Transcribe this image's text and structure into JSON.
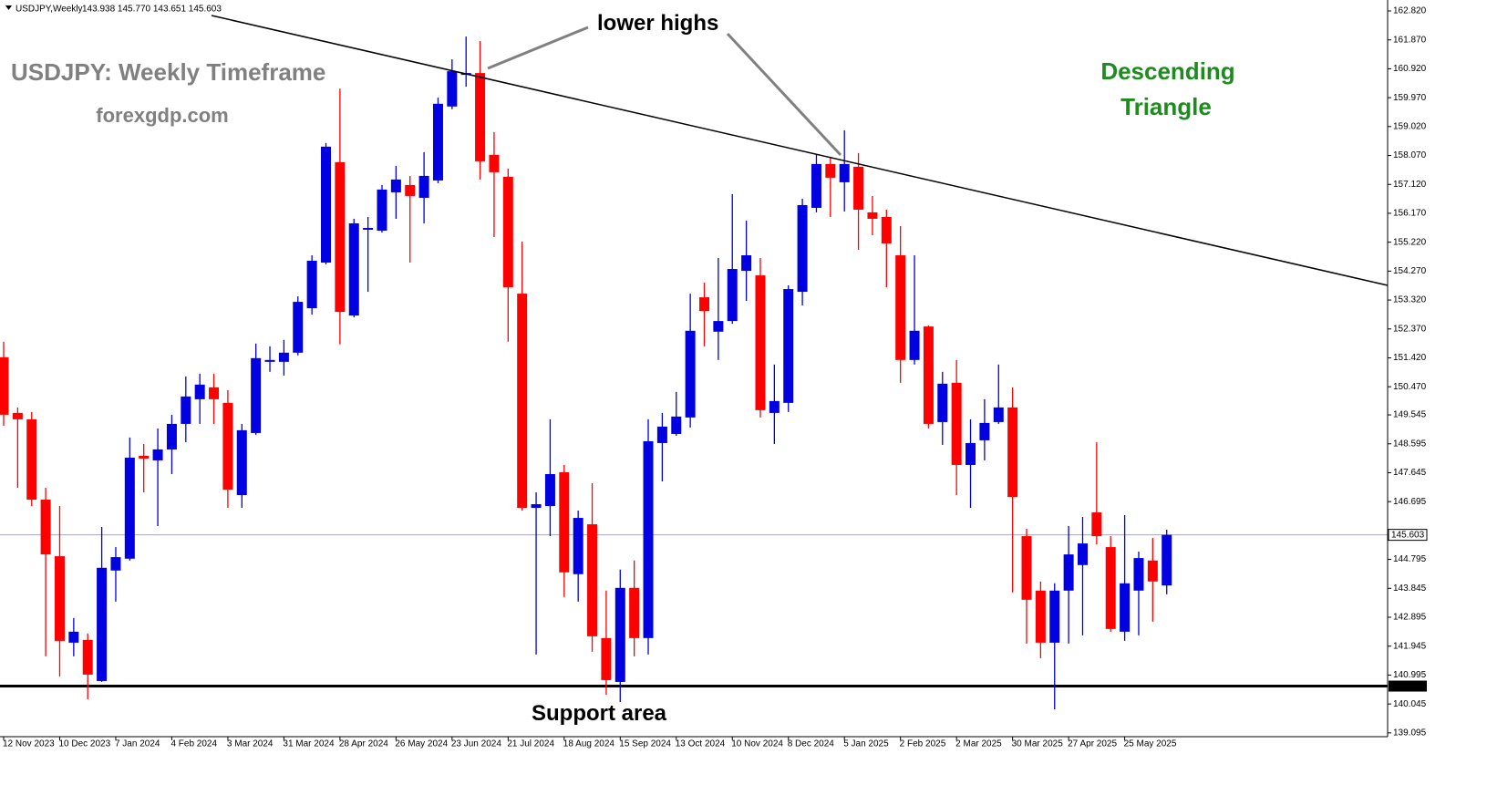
{
  "header": {
    "symbol": "USDJPY,Weekly",
    "info": "143.938 145.770 143.651 145.603"
  },
  "annotations": {
    "title": "USDJPY: Weekly Timeframe",
    "site": "forexgdp.com",
    "pattern": [
      "Descending",
      "Triangle"
    ],
    "lower_highs": "lower highs",
    "support": "Support area"
  },
  "chart_data": {
    "type": "candlestick",
    "categories": [
      "12 Nov 2023",
      null,
      null,
      null,
      "10 Dec 2023",
      null,
      null,
      null,
      "7 Jan 2024",
      null,
      null,
      null,
      "4 Feb 2024",
      null,
      null,
      null,
      "3 Mar 2024",
      null,
      null,
      null,
      "31 Mar 2024",
      null,
      null,
      null,
      "28 Apr 2024",
      null,
      null,
      null,
      "26 May 2024",
      null,
      null,
      null,
      "23 Jun 2024",
      null,
      null,
      null,
      "21 Jul 2024",
      null,
      null,
      null,
      "18 Aug 2024",
      null,
      null,
      null,
      "15 Sep 2024",
      null,
      null,
      null,
      "13 Oct 2024",
      null,
      null,
      null,
      "10 Nov 2024",
      null,
      null,
      null,
      "8 Dec 2024",
      null,
      null,
      null,
      "5 Jan 2025",
      null,
      null,
      null,
      "2 Feb 2025",
      null,
      null,
      null,
      "2 Mar 2025",
      null,
      null,
      null,
      "30 Mar 2025",
      null,
      null,
      null,
      "27 Apr 2025",
      null,
      null,
      null,
      "25 May 2025",
      null,
      null,
      null
    ],
    "open": [
      151.44,
      149.61,
      149.4,
      146.76,
      144.9,
      142.06,
      142.15,
      140.8,
      144.43,
      144.82,
      148.2,
      148.05,
      148.41,
      149.25,
      150.06,
      150.45,
      149.94,
      146.91,
      148.95,
      151.29,
      151.29,
      151.59,
      153.05,
      154.55,
      157.85,
      152.81,
      155.63,
      155.6,
      156.86,
      157.1,
      156.68,
      157.25,
      159.68,
      160.72,
      160.78,
      158.09,
      157.37,
      153.53,
      146.49,
      146.55,
      147.66,
      144.31,
      145.95,
      142.21,
      140.77,
      143.86,
      142.21,
      148.62,
      148.92,
      149.46,
      153.41,
      152.28,
      152.63,
      154.28,
      154.13,
      149.61,
      149.94,
      153.59,
      156.35,
      157.79,
      157.19,
      157.7,
      156.2,
      156.05,
      154.79,
      151.35,
      152.45,
      149.31,
      150.6,
      147.9,
      148.71,
      149.31,
      149.79,
      145.56,
      143.77,
      142.06,
      143.77,
      144.61,
      146.34,
      145.2,
      142.42,
      143.77,
      144.76,
      143.938
    ],
    "high": [
      151.95,
      149.79,
      149.64,
      147.15,
      146.55,
      142.87,
      142.36,
      145.86,
      145.2,
      148.8,
      148.59,
      149.1,
      149.55,
      150.81,
      150.9,
      150.9,
      150.36,
      149.25,
      151.89,
      151.8,
      152.01,
      153.44,
      154.79,
      158.48,
      160.27,
      155.99,
      156.05,
      157.1,
      157.73,
      157.4,
      158.18,
      159.97,
      161.23,
      161.98,
      161.83,
      158.84,
      157.64,
      155.24,
      147.0,
      149.4,
      147.9,
      146.4,
      147.3,
      143.77,
      144.46,
      144.76,
      149.4,
      149.61,
      150.3,
      153.53,
      153.89,
      154.7,
      156.8,
      155.93,
      154.7,
      151.2,
      153.8,
      156.65,
      158.09,
      158.03,
      158.9,
      158.15,
      156.74,
      156.29,
      155.75,
      154.79,
      152.48,
      150.96,
      151.35,
      149.4,
      150.06,
      151.2,
      150.45,
      145.8,
      144.07,
      144.01,
      145.89,
      146.19,
      148.65,
      145.56,
      146.25,
      145.05,
      145.5,
      145.77
    ],
    "low": [
      149.19,
      147.15,
      146.55,
      141.61,
      140.95,
      141.61,
      140.2,
      140.77,
      143.41,
      144.76,
      147.0,
      145.89,
      147.6,
      148.65,
      149.25,
      149.25,
      146.49,
      146.49,
      148.89,
      150.96,
      150.84,
      151.5,
      152.84,
      154.49,
      151.86,
      152.75,
      153.59,
      155.54,
      155.99,
      154.55,
      155.84,
      157.16,
      159.59,
      160.33,
      157.28,
      155.39,
      151.95,
      146.4,
      141.67,
      145.56,
      143.56,
      143.41,
      141.76,
      140.35,
      140.11,
      141.61,
      141.67,
      147.36,
      148.86,
      149.13,
      151.8,
      151.35,
      152.54,
      153.29,
      149.46,
      148.59,
      149.64,
      153.14,
      156.2,
      156.05,
      156.23,
      154.97,
      155.45,
      153.74,
      150.6,
      151.2,
      149.1,
      148.56,
      146.91,
      146.49,
      148.05,
      149.25,
      143.71,
      142.03,
      141.55,
      139.87,
      142.03,
      142.3,
      145.29,
      142.42,
      142.12,
      142.3,
      142.75,
      143.651
    ],
    "close": [
      149.55,
      149.4,
      146.76,
      144.96,
      142.12,
      142.42,
      141.01,
      144.52,
      144.87,
      148.14,
      148.11,
      148.41,
      149.25,
      150.15,
      150.54,
      150.06,
      147.09,
      149.04,
      151.41,
      151.35,
      151.59,
      153.26,
      154.61,
      158.36,
      152.93,
      155.84,
      155.69,
      156.95,
      157.28,
      156.74,
      157.4,
      159.77,
      160.84,
      160.78,
      157.88,
      157.52,
      153.74,
      146.49,
      146.61,
      147.6,
      144.37,
      146.16,
      142.27,
      140.83,
      143.86,
      142.21,
      148.68,
      149.16,
      149.49,
      152.31,
      152.96,
      152.63,
      154.34,
      154.79,
      149.7,
      150.0,
      153.68,
      156.44,
      157.79,
      157.34,
      157.79,
      156.29,
      155.99,
      155.18,
      151.35,
      152.31,
      149.25,
      150.57,
      147.9,
      148.62,
      149.28,
      149.79,
      146.85,
      143.47,
      142.06,
      143.77,
      144.96,
      145.32,
      145.56,
      142.51,
      144.01,
      144.84,
      144.07,
      145.603
    ],
    "up_color": "#0000e0",
    "down_color": "#ff0000",
    "ylim": [
      138.97,
      163.18
    ],
    "yticks": [
      {
        "value": 162.82,
        "label": "162.820"
      },
      {
        "value": 161.87,
        "label": "161.870"
      },
      {
        "value": 160.92,
        "label": "160.920"
      },
      {
        "value": 159.97,
        "label": "159.970"
      },
      {
        "value": 159.02,
        "label": "159.020"
      },
      {
        "value": 158.07,
        "label": "158.070"
      },
      {
        "value": 157.12,
        "label": "157.120"
      },
      {
        "value": 156.17,
        "label": "156.170"
      },
      {
        "value": 155.22,
        "label": "155.220"
      },
      {
        "value": 154.27,
        "label": "154.270"
      },
      {
        "value": 153.32,
        "label": "153.320"
      },
      {
        "value": 152.37,
        "label": "152.370"
      },
      {
        "value": 151.42,
        "label": "151.420"
      },
      {
        "value": 150.47,
        "label": "150.470"
      },
      149.545,
      148.595,
      147.645,
      146.695,
      144.795,
      143.845,
      142.895,
      141.945,
      140.995,
      140.045,
      139.095
    ],
    "support_level": 140.632,
    "last_price": 145.603
  }
}
